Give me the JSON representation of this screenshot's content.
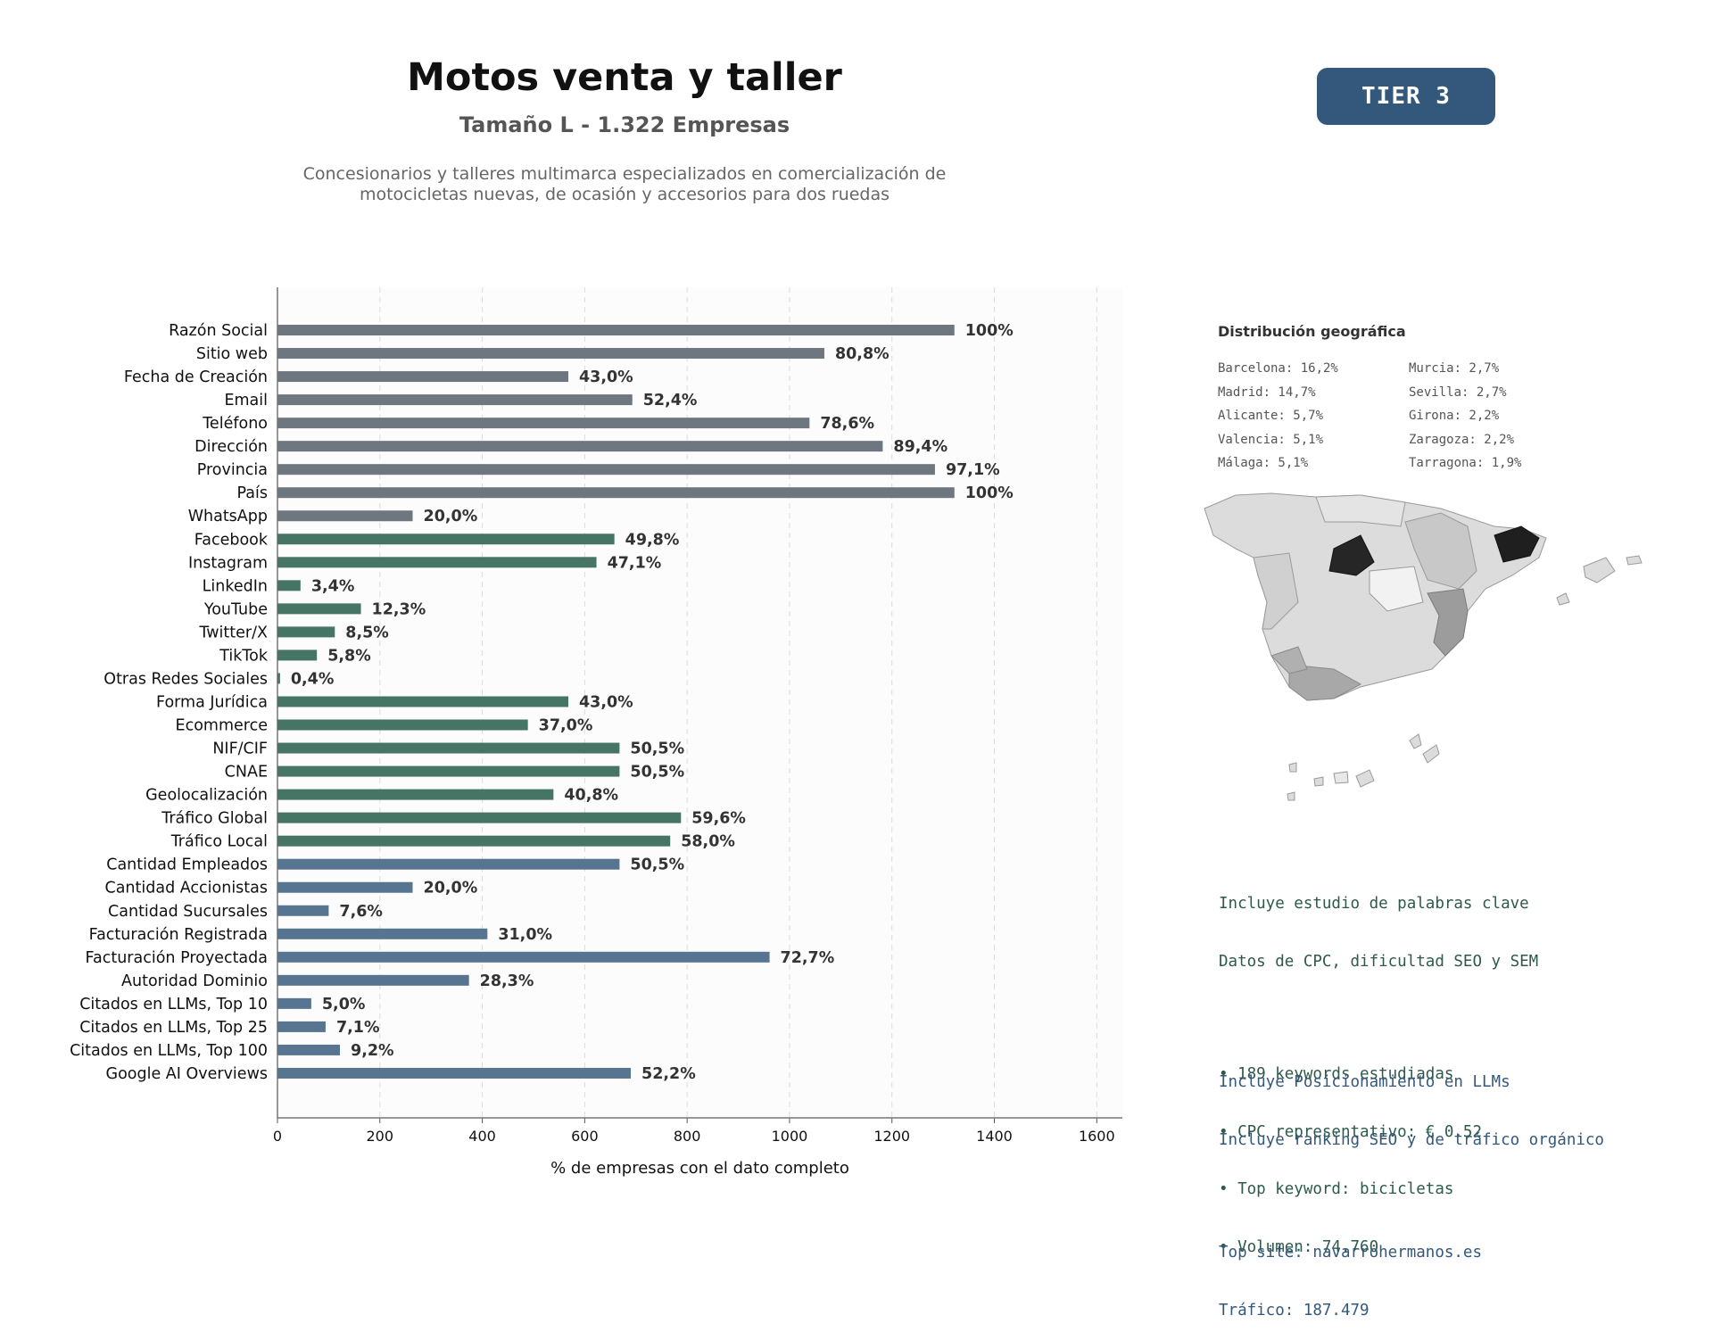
{
  "header": {
    "title": "Motos venta y taller",
    "subtitle": "Tamaño L - 1.322 Empresas",
    "description": "Concesionarios y talleres multimarca especializados en comercialización de motocicletas nuevas, de ocasión y accesorios para dos ruedas",
    "tier_badge": "TIER 3"
  },
  "colors": {
    "gray": "#6e7780",
    "green": "#477565",
    "blue": "#577591",
    "bar_text": "#333333"
  },
  "chart_data": {
    "type": "bar",
    "orientation": "horizontal",
    "xlabel": "% de empresas con el dato completo",
    "xlim": [
      0,
      1650
    ],
    "xticks": [
      0,
      200,
      400,
      600,
      800,
      1000,
      1200,
      1400,
      1600
    ],
    "grid": "vertical dashed",
    "total": 1322,
    "categories": [
      "Razón Social",
      "Sitio web",
      "Fecha de Creación",
      "Email",
      "Teléfono",
      "Dirección",
      "Provincia",
      "País",
      "WhatsApp",
      "Facebook",
      "Instagram",
      "LinkedIn",
      "YouTube",
      "Twitter/X",
      "TikTok",
      "Otras Redes Sociales",
      "Forma Jurídica",
      "Ecommerce",
      "NIF/CIF",
      "CNAE",
      "Geolocalización",
      "Tráfico Global",
      "Tráfico Local",
      "Cantidad Empleados",
      "Cantidad Accionistas",
      "Cantidad Sucursales",
      "Facturación Registrada",
      "Facturación Proyectada",
      "Autoridad Dominio",
      "Citados en LLMs, Top 10",
      "Citados en LLMs, Top 25",
      "Citados en LLMs, Top 100",
      "Google AI Overviews"
    ],
    "values": [
      1322,
      1068,
      568,
      693,
      1039,
      1182,
      1284,
      1322,
      264,
      658,
      623,
      45,
      163,
      112,
      77,
      5,
      568,
      489,
      668,
      668,
      539,
      788,
      767,
      668,
      264,
      100,
      410,
      961,
      374,
      66,
      94,
      122,
      690
    ],
    "labels": [
      "100%",
      "80,8%",
      "43,0%",
      "52,4%",
      "78,6%",
      "89,4%",
      "97,1%",
      "100%",
      "20,0%",
      "49,8%",
      "47,1%",
      "3,4%",
      "12,3%",
      "8,5%",
      "5,8%",
      "0,4%",
      "43,0%",
      "37,0%",
      "50,5%",
      "50,5%",
      "40,8%",
      "59,6%",
      "58,0%",
      "50,5%",
      "20,0%",
      "7,6%",
      "31,0%",
      "72,7%",
      "28,3%",
      "5,0%",
      "7,1%",
      "9,2%",
      "52,2%"
    ],
    "groups": [
      "gray",
      "gray",
      "gray",
      "gray",
      "gray",
      "gray",
      "gray",
      "gray",
      "gray",
      "green",
      "green",
      "green",
      "green",
      "green",
      "green",
      "green",
      "green",
      "green",
      "green",
      "green",
      "green",
      "green",
      "green",
      "blue",
      "blue",
      "blue",
      "blue",
      "blue",
      "blue",
      "blue",
      "blue",
      "blue",
      "blue"
    ]
  },
  "geo": {
    "title": "Distribución geográfica",
    "left": [
      "Barcelona: 16,2%",
      "Madrid: 14,7%",
      "Alicante: 5,7%",
      "Valencia: 5,1%",
      "Málaga: 5,1%"
    ],
    "right": [
      "Murcia: 2,7%",
      "Sevilla: 2,7%",
      "Girona: 2,2%",
      "Zaragoza: 2,2%",
      "Tarragona: 1,9%"
    ]
  },
  "keywords": {
    "line1": "Incluye estudio de palabras clave",
    "line2": "Datos de CPC, dificultad SEO y SEM",
    "b1": "• 189 keywords estudiadas",
    "b2": "• CPC representativo: € 0.52",
    "b3": "• Top keyword: bicicletas",
    "b4": "• Volumen: 74.760"
  },
  "llm": {
    "line1": "Incluye Posicionamiento en LLMs",
    "line2": "Incluye ranking SEO y de tráfico orgánico",
    "top_site": "Top site: navarrohermanos.es",
    "traffic": "Tráfico: 187.479"
  }
}
